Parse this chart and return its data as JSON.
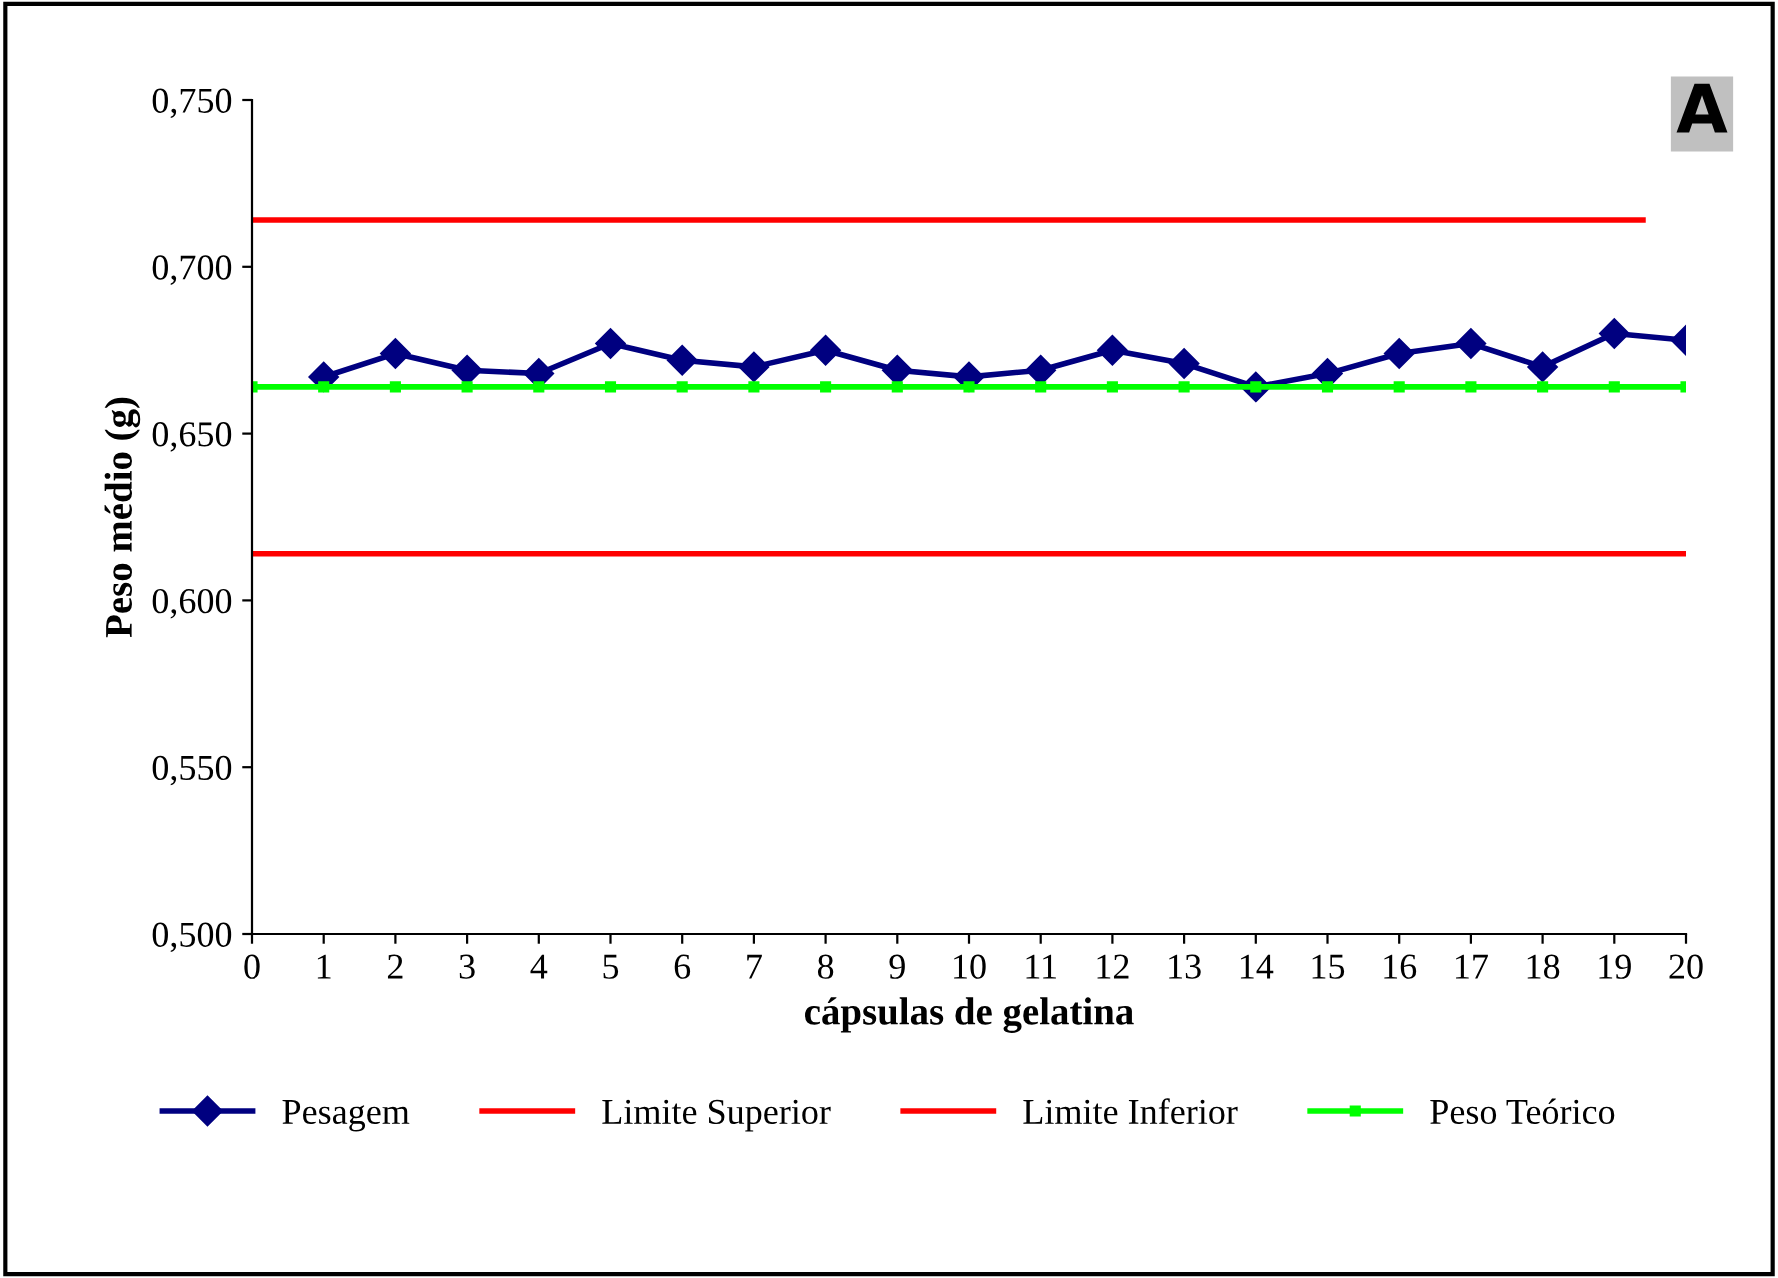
{
  "chart_data": {
    "type": "line",
    "xlabel": "cápsulas de gelatina",
    "ylabel": "Peso médio (g)",
    "annotations": [
      "A"
    ],
    "xlim": [
      0,
      20
    ],
    "xticks": [
      0,
      1,
      2,
      3,
      4,
      5,
      6,
      7,
      8,
      9,
      10,
      11,
      12,
      13,
      14,
      15,
      16,
      17,
      18,
      19,
      20
    ],
    "ylim": [
      0.5,
      0.75
    ],
    "yticks": [
      {
        "value": 0.5,
        "label": "0,500"
      },
      {
        "value": 0.55,
        "label": "0,550"
      },
      {
        "value": 0.6,
        "label": "0,600"
      },
      {
        "value": 0.65,
        "label": "0,650"
      },
      {
        "value": 0.7,
        "label": "0,700"
      },
      {
        "value": 0.75,
        "label": "0,750"
      }
    ],
    "grid": false,
    "legend": "bottom",
    "series": [
      {
        "name": "Pesagem",
        "color": "#000080",
        "marker": "diamond",
        "x": [
          1,
          2,
          3,
          4,
          5,
          6,
          7,
          8,
          9,
          10,
          11,
          12,
          13,
          14,
          15,
          16,
          17,
          18,
          19,
          20
        ],
        "values": [
          0.667,
          0.674,
          0.669,
          0.668,
          0.677,
          0.672,
          0.67,
          0.675,
          0.669,
          0.667,
          0.669,
          0.675,
          0.671,
          0.664,
          0.668,
          0.674,
          0.677,
          0.67,
          0.68,
          0.678
        ]
      },
      {
        "name": "Limite Superior",
        "color": "#ff0000",
        "marker": "none",
        "x": [
          0,
          19.4
        ],
        "values": [
          0.714,
          0.714
        ]
      },
      {
        "name": "Limite Inferior",
        "color": "#ff0000",
        "marker": "none",
        "x": [
          0,
          20
        ],
        "values": [
          0.614,
          0.614
        ]
      },
      {
        "name": "Peso Teórico",
        "color": "#00ff00",
        "marker": "square",
        "x": [
          0,
          1,
          2,
          3,
          4,
          5,
          6,
          7,
          8,
          9,
          10,
          11,
          12,
          13,
          14,
          15,
          16,
          17,
          18,
          19,
          20
        ],
        "values": [
          0.664,
          0.664,
          0.664,
          0.664,
          0.664,
          0.664,
          0.664,
          0.664,
          0.664,
          0.664,
          0.664,
          0.664,
          0.664,
          0.664,
          0.664,
          0.664,
          0.664,
          0.664,
          0.664,
          0.664,
          0.664
        ]
      }
    ]
  }
}
